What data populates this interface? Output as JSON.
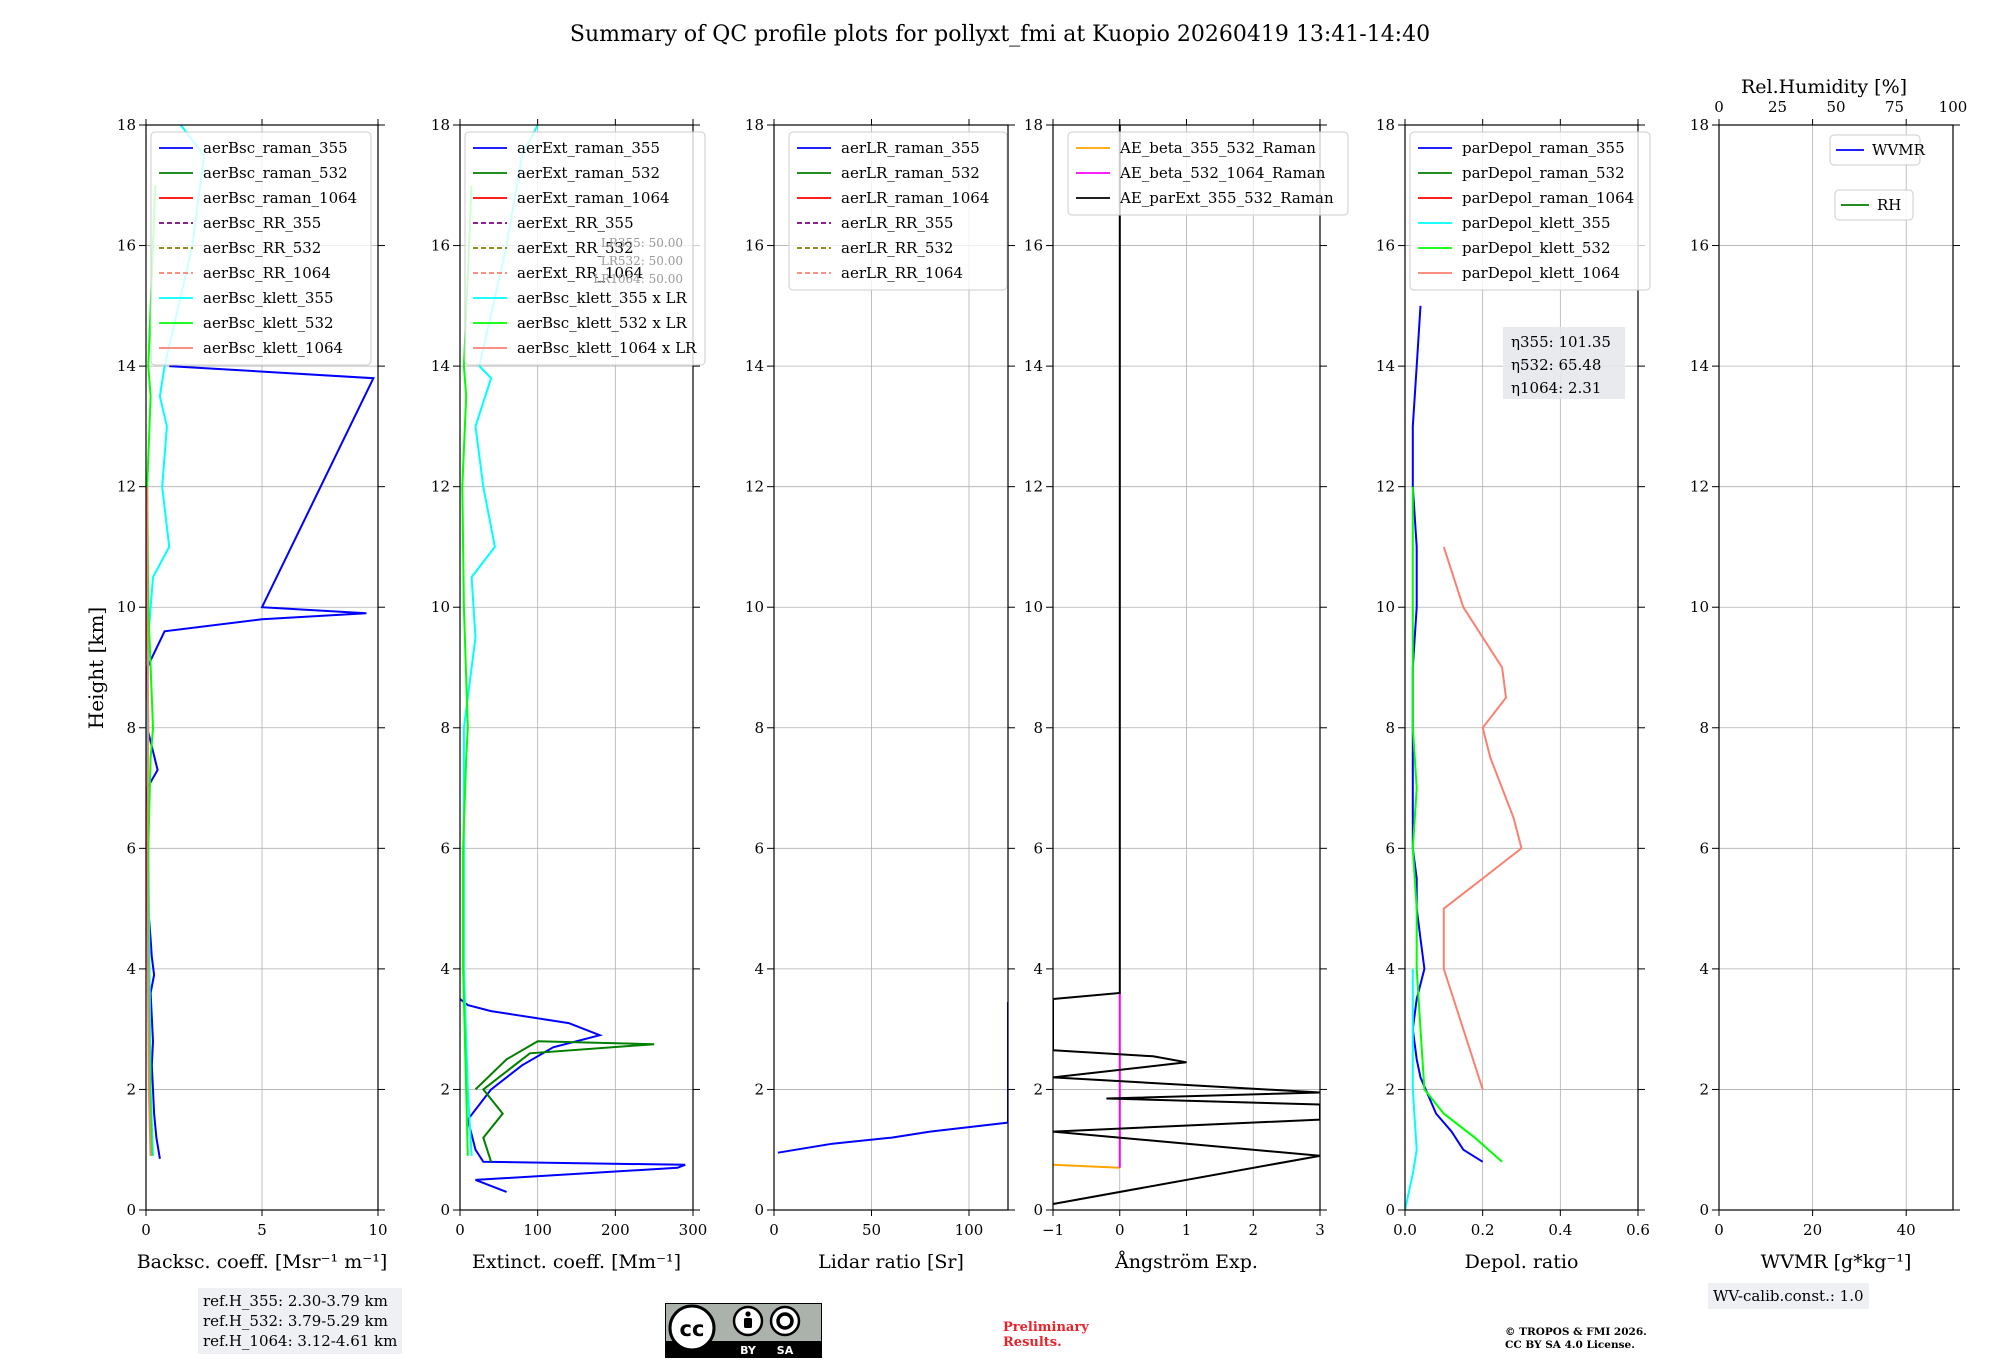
{
  "title": "Summary of QC profile plots for pollyxt_fmi at Kuopio 20260419 13:41-14:40",
  "ylabel": "Height [km]",
  "colors": {
    "blue": "#0000ff",
    "green": "#008000",
    "red": "#ff0000",
    "purple": "#800080",
    "olive": "#808000",
    "salmon": "#fa8072",
    "cyan": "#00ffff",
    "lime": "#00ff00",
    "orange": "#ffa500",
    "magenta": "#ff00ff",
    "black": "#000000"
  },
  "chart_data": [
    {
      "type": "line",
      "id": "bsc",
      "xlabel": "Backsc. coeff. [Msr⁻¹ m⁻¹]",
      "xlim": [
        0,
        10
      ],
      "xticks": [
        "0",
        "5",
        "10"
      ],
      "xtickvals": [
        0,
        5,
        10
      ],
      "ylim": [
        0,
        18
      ],
      "yticks": [
        "0",
        "2",
        "4",
        "6",
        "8",
        "10",
        "12",
        "14",
        "16",
        "18"
      ],
      "legend": [
        {
          "label": "aerBsc_raman_355",
          "color": "#0000ff",
          "dash": false
        },
        {
          "label": "aerBsc_raman_532",
          "color": "#008000",
          "dash": false
        },
        {
          "label": "aerBsc_raman_1064",
          "color": "#ff0000",
          "dash": false
        },
        {
          "label": "aerBsc_RR_355",
          "color": "#800080",
          "dash": true
        },
        {
          "label": "aerBsc_RR_532",
          "color": "#808000",
          "dash": true
        },
        {
          "label": "aerBsc_RR_1064",
          "color": "#fa8072",
          "dash": true
        },
        {
          "label": "aerBsc_klett_355",
          "color": "#00ffff",
          "dash": false
        },
        {
          "label": "aerBsc_klett_532",
          "color": "#00ff00",
          "dash": false
        },
        {
          "label": "aerBsc_klett_1064",
          "color": "#fa8072",
          "dash": false
        }
      ],
      "series": [
        {
          "name": "aerBsc_raman_355",
          "color": "#0000ff",
          "y": [
            0.85,
            1.2,
            1.6,
            2.0,
            2.4,
            2.8,
            3.2,
            3.6,
            3.9,
            4.2,
            4.5,
            5.0,
            5.8,
            7.0,
            7.3,
            8.0,
            9.0,
            9.6,
            9.8,
            9.9,
            10.0,
            13.8,
            14.0
          ],
          "x": [
            0.6,
            0.45,
            0.35,
            0.3,
            0.25,
            0.3,
            0.25,
            0.2,
            0.35,
            0.25,
            0.2,
            0.1,
            0.05,
            0.05,
            0.5,
            0.05,
            0.05,
            0.8,
            5.0,
            9.5,
            5.0,
            9.8,
            1.0
          ]
        },
        {
          "name": "aerBsc_klett_355",
          "color": "#00ffff",
          "y": [
            0.9,
            2.0,
            4.0,
            8.0,
            9.5,
            10.5,
            11.0,
            12.0,
            13.0,
            13.5,
            14.0,
            16.0,
            17.5,
            18.0
          ],
          "x": [
            0.3,
            0.2,
            0.15,
            0.05,
            0.1,
            0.3,
            1.0,
            0.7,
            0.9,
            0.6,
            0.8,
            2.0,
            2.5,
            1.5
          ]
        },
        {
          "name": "aerBsc_klett_532",
          "color": "#00ff00",
          "y": [
            0.9,
            2.0,
            4.0,
            6.0,
            7.5,
            8.0,
            10.0,
            12.0,
            13.5,
            14.0,
            17.0
          ],
          "x": [
            0.25,
            0.18,
            0.1,
            0.1,
            0.2,
            0.3,
            0.1,
            0.05,
            0.2,
            0.1,
            0.4
          ]
        },
        {
          "name": "aerBsc_klett_1064",
          "color": "#fa8072",
          "y": [
            0.9,
            2.0,
            4.0,
            6.0,
            8.0,
            10.0,
            12.0
          ],
          "x": [
            0.2,
            0.12,
            0.08,
            0.05,
            0.1,
            0.05,
            0.05
          ]
        }
      ]
    },
    {
      "type": "line",
      "id": "ext",
      "xlabel": "Extinct. coeff. [Mm⁻¹]",
      "xlim": [
        0,
        300
      ],
      "xticks": [
        "0",
        "100",
        "200",
        "300"
      ],
      "xtickvals": [
        0,
        100,
        200,
        300
      ],
      "ylim": [
        0,
        18
      ],
      "yticks": [
        "0",
        "2",
        "4",
        "6",
        "8",
        "10",
        "12",
        "14",
        "16",
        "18"
      ],
      "legend": [
        {
          "label": "aerExt_raman_355",
          "color": "#0000ff",
          "dash": false
        },
        {
          "label": "aerExt_raman_532",
          "color": "#008000",
          "dash": false
        },
        {
          "label": "aerExt_raman_1064",
          "color": "#ff0000",
          "dash": false
        },
        {
          "label": "aerExt_RR_355",
          "color": "#800080",
          "dash": true
        },
        {
          "label": "aerExt_RR_532",
          "color": "#808000",
          "dash": true
        },
        {
          "label": "aerExt_RR_1064",
          "color": "#fa8072",
          "dash": true
        },
        {
          "label": "aerBsc_klett_355 x LR",
          "color": "#00ffff",
          "dash": false
        },
        {
          "label": "aerBsc_klett_532 x LR",
          "color": "#00ff00",
          "dash": false
        },
        {
          "label": "aerBsc_klett_1064 x LR",
          "color": "#fa8072",
          "dash": false
        }
      ],
      "lr_labels": [
        "LR355: 50.00",
        "LR532: 50.00",
        "LR1064: 50.00"
      ],
      "series": [
        {
          "name": "aerExt_raman_355",
          "color": "#0000ff",
          "y": [
            0.3,
            0.5,
            0.7,
            0.75,
            0.8,
            1.0,
            1.5,
            2.0,
            2.4,
            2.7,
            2.9,
            3.1,
            3.3,
            3.4,
            3.5
          ],
          "x": [
            60,
            20,
            280,
            290,
            30,
            20,
            10,
            40,
            80,
            120,
            180,
            140,
            40,
            10,
            0
          ]
        },
        {
          "name": "aerExt_raman_532",
          "color": "#008000",
          "y": [
            0.8,
            1.2,
            1.6,
            2.0,
            2.3,
            2.6,
            2.75,
            2.8,
            2.5,
            2.0
          ],
          "x": [
            40,
            30,
            55,
            30,
            60,
            90,
            250,
            100,
            60,
            20
          ]
        },
        {
          "name": "aerBsc_klett_355 x LR",
          "color": "#00ffff",
          "y": [
            0.9,
            2.0,
            4.0,
            8.0,
            8.5,
            9.5,
            10.5,
            11.0,
            12.0,
            13.0,
            13.8,
            14.0,
            16.0,
            17.5,
            18.0
          ],
          "x": [
            15,
            10,
            5,
            5,
            10,
            20,
            15,
            45,
            30,
            20,
            40,
            25,
            60,
            80,
            100
          ]
        },
        {
          "name": "aerBsc_klett_532 x LR",
          "color": "#00ff00",
          "y": [
            0.9,
            2.0,
            4.0,
            6.0,
            7.5,
            8.0,
            10.0,
            12.0,
            13.5,
            14.0,
            17.0
          ],
          "x": [
            10,
            8,
            4,
            4,
            8,
            10,
            5,
            3,
            8,
            5,
            15
          ]
        }
      ]
    },
    {
      "type": "line",
      "id": "lr",
      "xlabel": "Lidar ratio [Sr]",
      "xlim": [
        0,
        120
      ],
      "xticks": [
        "0",
        "50",
        "100"
      ],
      "xtickvals": [
        0,
        50,
        100
      ],
      "ylim": [
        0,
        18
      ],
      "yticks": [
        "0",
        "2",
        "4",
        "6",
        "8",
        "10",
        "12",
        "14",
        "16",
        "18"
      ],
      "legend": [
        {
          "label": "aerLR_raman_355",
          "color": "#0000ff",
          "dash": false
        },
        {
          "label": "aerLR_raman_532",
          "color": "#008000",
          "dash": false
        },
        {
          "label": "aerLR_raman_1064",
          "color": "#ff0000",
          "dash": false
        },
        {
          "label": "aerLR_RR_355",
          "color": "#800080",
          "dash": true
        },
        {
          "label": "aerLR_RR_532",
          "color": "#808000",
          "dash": true
        },
        {
          "label": "aerLR_RR_1064",
          "color": "#fa8072",
          "dash": true
        }
      ],
      "series": [
        {
          "name": "aerLR_raman_355",
          "color": "#0000ff",
          "y": [
            0.95,
            1.1,
            1.2,
            1.3,
            1.45,
            1.9,
            2.1,
            2.75,
            3.1,
            3.2,
            3.35,
            3.45
          ],
          "x": [
            2,
            30,
            60,
            80,
            120,
            120,
            120,
            120,
            120,
            120,
            120,
            120
          ]
        }
      ]
    },
    {
      "type": "line",
      "id": "ae",
      "xlabel": "Ångström Exp.",
      "xlim": [
        -1,
        3
      ],
      "xticks": [
        "−1",
        "0",
        "1",
        "2",
        "3"
      ],
      "xtickvals": [
        -1,
        0,
        1,
        2,
        3
      ],
      "ylim": [
        0,
        18
      ],
      "yticks": [
        "0",
        "2",
        "4",
        "6",
        "8",
        "10",
        "12",
        "14",
        "16",
        "18"
      ],
      "legend": [
        {
          "label": "AE_beta_355_532_Raman",
          "color": "#ffa500",
          "dash": false
        },
        {
          "label": "AE_beta_532_1064_Raman",
          "color": "#ff00ff",
          "dash": false
        },
        {
          "label": "AE_parExt_355_532_Raman",
          "color": "#000000",
          "dash": false
        }
      ],
      "series": [
        {
          "name": "AE_beta_355_532_Raman",
          "color": "#ffa500",
          "y": [
            0.75,
            0.7
          ],
          "x": [
            -1,
            0
          ]
        },
        {
          "name": "AE_beta_532_1064_Raman",
          "color": "#ff00ff",
          "y": [
            0.7,
            3.6
          ],
          "x": [
            0,
            0
          ]
        },
        {
          "name": "AE_parExt_355_532_Raman",
          "color": "#000000",
          "y": [
            0.1,
            0.9,
            1.3,
            1.5,
            1.75,
            1.85,
            1.95,
            2.2,
            2.45,
            2.55,
            2.65,
            3.5,
            3.6,
            18.0
          ],
          "x": [
            -1,
            3,
            -1,
            3,
            3,
            -0.2,
            3,
            -1,
            1,
            0.5,
            -1,
            -1,
            0,
            0
          ]
        }
      ]
    },
    {
      "type": "line",
      "id": "depol",
      "xlabel": "Depol. ratio",
      "xlim": [
        0,
        0.6
      ],
      "xticks": [
        "0.0",
        "0.2",
        "0.4",
        "0.6"
      ],
      "xtickvals": [
        0,
        0.2,
        0.4,
        0.6
      ],
      "ylim": [
        0,
        18
      ],
      "yticks": [
        "0",
        "2",
        "4",
        "6",
        "8",
        "10",
        "12",
        "14",
        "16",
        "18"
      ],
      "legend": [
        {
          "label": "parDepol_raman_355",
          "color": "#0000ff",
          "dash": false
        },
        {
          "label": "parDepol_raman_532",
          "color": "#008000",
          "dash": false
        },
        {
          "label": "parDepol_raman_1064",
          "color": "#ff0000",
          "dash": false
        },
        {
          "label": "parDepol_klett_355",
          "color": "#00ffff",
          "dash": false
        },
        {
          "label": "parDepol_klett_532",
          "color": "#00ff00",
          "dash": false
        },
        {
          "label": "parDepol_klett_1064",
          "color": "#fa8072",
          "dash": false
        }
      ],
      "eta": [
        {
          "label": "η355",
          "value": "101.35"
        },
        {
          "label": "η532",
          "value": "65.48"
        },
        {
          "label": "η1064",
          "value": "2.31"
        }
      ],
      "series": [
        {
          "name": "parDepol_raman_355",
          "color": "#0000ff",
          "y": [
            0.8,
            1.0,
            1.3,
            1.6,
            1.9,
            2.2,
            2.5,
            3.0,
            3.5,
            4.0,
            4.5,
            5.0,
            5.5,
            6.0,
            7.0,
            8.0,
            9.0,
            10.0,
            11.0,
            12.0,
            13.0,
            14.0,
            15.0
          ],
          "x": [
            0.2,
            0.15,
            0.12,
            0.08,
            0.06,
            0.04,
            0.03,
            0.02,
            0.03,
            0.05,
            0.04,
            0.03,
            0.03,
            0.02,
            0.02,
            0.02,
            0.02,
            0.03,
            0.03,
            0.02,
            0.02,
            0.03,
            0.04
          ]
        },
        {
          "name": "parDepol_klett_1064",
          "color": "#fa8072",
          "y": [
            2.0,
            3.0,
            4.0,
            5.0,
            5.5,
            6.0,
            6.5,
            7.0,
            7.5,
            8.0,
            8.5,
            9.0,
            9.5,
            10.0,
            11.0
          ],
          "x": [
            0.2,
            0.15,
            0.1,
            0.1,
            0.2,
            0.3,
            0.28,
            0.25,
            0.22,
            0.2,
            0.26,
            0.25,
            0.2,
            0.15,
            0.1
          ]
        },
        {
          "name": "parDepol_klett_532",
          "color": "#00ff00",
          "y": [
            0.8,
            1.2,
            1.6,
            2.0,
            3.0,
            4.0,
            5.0,
            6.0,
            7.0,
            8.0,
            10.0,
            12.0
          ],
          "x": [
            0.25,
            0.18,
            0.1,
            0.05,
            0.04,
            0.03,
            0.03,
            0.02,
            0.03,
            0.02,
            0.02,
            0.02
          ]
        },
        {
          "name": "parDepol_klett_355",
          "color": "#00ffff",
          "y": [
            0.0,
            0.6,
            1.0,
            2.0,
            3.0,
            4.0
          ],
          "x": [
            0.0,
            0.02,
            0.03,
            0.02,
            0.02,
            0.02
          ]
        }
      ]
    },
    {
      "type": "line",
      "id": "wv",
      "xlabel": "WVMR [g*kg⁻¹]",
      "xlim": [
        0,
        50
      ],
      "xticks": [
        "0",
        "20",
        "40"
      ],
      "xtickvals": [
        0,
        20,
        40
      ],
      "top_xlabel": "Rel.Humidity [%]",
      "top_xlim": [
        0,
        100
      ],
      "top_xticks": [
        "0",
        "25",
        "50",
        "75",
        "100"
      ],
      "top_xtickvals": [
        0,
        25,
        50,
        75,
        100
      ],
      "ylim": [
        0,
        18
      ],
      "yticks": [
        "0",
        "2",
        "4",
        "6",
        "8",
        "10",
        "12",
        "14",
        "16",
        "18"
      ],
      "legend": [
        {
          "label": "WVMR",
          "color": "#0000ff",
          "dash": false
        },
        {
          "label": "RH",
          "color": "#008000",
          "dash": false
        }
      ],
      "series": []
    }
  ],
  "refbox": [
    "ref.H_355: 2.30-3.79 km",
    "ref.H_532: 3.79-5.29 km",
    "ref.H_1064: 3.12-4.61 km"
  ],
  "wvcalib": "WV-calib.const.: 1.0",
  "license_badge": {
    "cc": "cc",
    "by": "BY",
    "sa": "SA"
  },
  "prelim": [
    "Preliminary",
    "Results."
  ],
  "copyright": [
    "© TROPOS & FMI 2026.",
    "CC BY SA 4.0 License."
  ]
}
